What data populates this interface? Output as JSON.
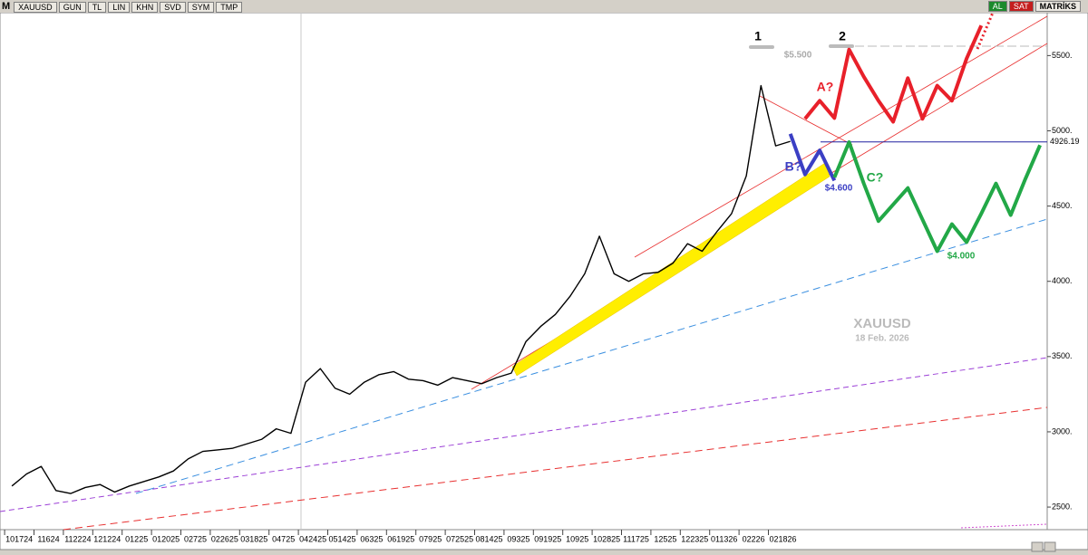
{
  "toolbar": {
    "logo": "M",
    "left": [
      "XAUUSD",
      "GUN",
      "TL",
      "LIN",
      "KHN",
      "SVD",
      "SYM",
      "TMP"
    ],
    "right": [
      "AL",
      "SAT",
      "MATRİKS"
    ]
  },
  "chart_data": {
    "type": "line",
    "title": "XAUUSD",
    "subtitle": "18 Feb. 2026",
    "categories": [
      "101724",
      null,
      "11624",
      null,
      "112224",
      null,
      "121224",
      null,
      "01225",
      null,
      "012025",
      null,
      "02725",
      null,
      "022625",
      null,
      "031825",
      null,
      "04725",
      null,
      "042425",
      null,
      "051425",
      null,
      "06325",
      null,
      "061925",
      null,
      "07925",
      null,
      "072525",
      null,
      "081425",
      null,
      "09325",
      null,
      "091925",
      null,
      "10925",
      null,
      "102825",
      null,
      "111725",
      null,
      "12525",
      null,
      "122325",
      null,
      "011326",
      null,
      "02226",
      null,
      "021826",
      null,
      null,
      null,
      null,
      null,
      null,
      null,
      null,
      null,
      null,
      null,
      null,
      null,
      null,
      null,
      null,
      null,
      null
    ],
    "series": [
      {
        "color": "#000000",
        "values": [
          2640,
          2720,
          2770,
          2610,
          2590,
          2630,
          2650,
          2600,
          2640,
          2670,
          2700,
          2740,
          2820,
          2870,
          2880,
          2890,
          2920,
          2950,
          3020,
          2990,
          3330,
          3420,
          3290,
          3250,
          3330,
          3380,
          3400,
          3350,
          3340,
          3310,
          3360,
          3340,
          3320,
          3360,
          3390,
          3600,
          3700,
          3780,
          3900,
          4050,
          4300,
          4050,
          4000,
          4050,
          4060,
          4120,
          4250,
          4200,
          4330,
          4450,
          4700,
          5300,
          4900,
          4930,
          null,
          null,
          null,
          null,
          null,
          null,
          null,
          null,
          null,
          null,
          null,
          null,
          null,
          null,
          null,
          null,
          null
        ]
      },
      {
        "color": "#e8202a",
        "values": [
          null,
          null,
          null,
          null,
          null,
          null,
          null,
          null,
          null,
          null,
          null,
          null,
          null,
          null,
          null,
          null,
          null,
          null,
          null,
          null,
          null,
          null,
          null,
          null,
          null,
          null,
          null,
          null,
          null,
          null,
          null,
          null,
          null,
          null,
          null,
          null,
          null,
          null,
          null,
          null,
          null,
          null,
          null,
          null,
          null,
          null,
          null,
          null,
          null,
          null,
          null,
          null,
          null,
          null,
          5080,
          5200,
          5085,
          5540,
          5360,
          5200,
          5060,
          5350,
          5080,
          5300,
          5200,
          5480,
          5700,
          null,
          null,
          null,
          null
        ]
      },
      {
        "color": "#3b3fc4",
        "values": [
          null,
          null,
          null,
          null,
          null,
          null,
          null,
          null,
          null,
          null,
          null,
          null,
          null,
          null,
          null,
          null,
          null,
          null,
          null,
          null,
          null,
          null,
          null,
          null,
          null,
          null,
          null,
          null,
          null,
          null,
          null,
          null,
          null,
          null,
          null,
          null,
          null,
          null,
          null,
          null,
          null,
          null,
          null,
          null,
          null,
          null,
          null,
          null,
          null,
          null,
          null,
          null,
          null,
          4980,
          4710,
          4870,
          4670,
          null,
          null,
          null,
          null,
          null,
          null,
          null,
          null,
          null,
          null,
          null,
          null,
          null,
          null
        ]
      },
      {
        "color": "#22a847",
        "values": [
          null,
          null,
          null,
          null,
          null,
          null,
          null,
          null,
          null,
          null,
          null,
          null,
          null,
          null,
          null,
          null,
          null,
          null,
          null,
          null,
          null,
          null,
          null,
          null,
          null,
          null,
          null,
          null,
          null,
          null,
          null,
          null,
          null,
          null,
          null,
          null,
          null,
          null,
          null,
          null,
          null,
          null,
          null,
          null,
          null,
          null,
          null,
          null,
          null,
          null,
          null,
          null,
          null,
          null,
          null,
          null,
          4690,
          4925,
          4650,
          4400,
          4510,
          4620,
          4410,
          4200,
          4380,
          4260,
          4450,
          4650,
          4440,
          4680,
          4905
        ]
      }
    ],
    "ylim": [
      2350,
      5785
    ],
    "yticks": [
      {
        "value": 2500,
        "label": "2500."
      },
      {
        "value": 3000,
        "label": "3000."
      },
      {
        "value": 3500,
        "label": "3500."
      },
      {
        "value": 4000,
        "label": "4000."
      },
      {
        "value": 4500,
        "label": "4500."
      },
      {
        "value": 5000,
        "label": "5000."
      },
      {
        "value": 5500,
        "label": "5500."
      }
    ],
    "last_value": 4926.19,
    "annotations": [
      "1",
      "2",
      "$5.500",
      "A?",
      "B?",
      "C?",
      "$4.600",
      "$4.000"
    ],
    "grid": false
  }
}
